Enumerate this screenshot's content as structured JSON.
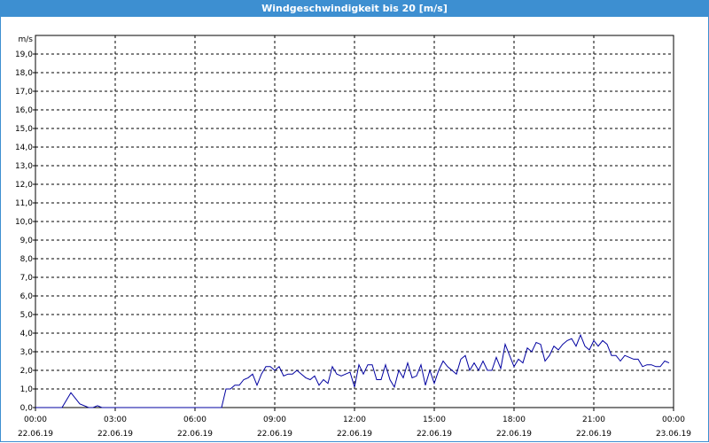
{
  "window": {
    "title": "Windgeschwindigkeit bis 20 [m/s]"
  },
  "chart_data": {
    "type": "line",
    "title": "Windgeschwindigkeit bis 20 [m/s]",
    "ylabel": "m/s",
    "ylim": [
      0,
      20
    ],
    "yticks": [
      "0,0",
      "1,0",
      "2,0",
      "3,0",
      "4,0",
      "5,0",
      "6,0",
      "7,0",
      "8,0",
      "9,0",
      "10,0",
      "11,0",
      "12,0",
      "13,0",
      "14,0",
      "15,0",
      "16,0",
      "17,0",
      "18,0",
      "19,0"
    ],
    "xlim_hours": [
      0,
      24
    ],
    "xticks": [
      {
        "time": "00:00",
        "date": "22.06.19"
      },
      {
        "time": "03:00",
        "date": "22.06.19"
      },
      {
        "time": "06:00",
        "date": "22.06.19"
      },
      {
        "time": "09:00",
        "date": "22.06.19"
      },
      {
        "time": "12:00",
        "date": "22.06.19"
      },
      {
        "time": "15:00",
        "date": "22.06.19"
      },
      {
        "time": "18:00",
        "date": "22.06.19"
      },
      {
        "time": "21:00",
        "date": "22.06.19"
      },
      {
        "time": "00:00",
        "date": "23.06.19"
      }
    ],
    "grid": true,
    "series_color": "#0000a0",
    "series": [
      {
        "x": [
          "22.06.19 00:00",
          "22.06.19 01:00",
          "22.06.19 01:20",
          "22.06.19 01:40",
          "22.06.19 02:00",
          "22.06.19 02:10",
          "22.06.19 02:20",
          "22.06.19 02:30",
          "22.06.19 02:40",
          "22.06.19 02:50",
          "22.06.19 03:00",
          "22.06.19 04:00",
          "22.06.19 05:00",
          "22.06.19 06:00",
          "22.06.19 07:00",
          "22.06.19 07:10",
          "22.06.19 07:20",
          "22.06.19 07:30",
          "22.06.19 07:40",
          "22.06.19 07:50",
          "22.06.19 08:00",
          "22.06.19 08:10",
          "22.06.19 08:20",
          "22.06.19 08:30",
          "22.06.19 08:40",
          "22.06.19 08:50",
          "22.06.19 09:00",
          "22.06.19 09:10",
          "22.06.19 09:20",
          "22.06.19 09:30",
          "22.06.19 09:40",
          "22.06.19 09:50",
          "22.06.19 10:00",
          "22.06.19 10:10",
          "22.06.19 10:20",
          "22.06.19 10:30",
          "22.06.19 10:40",
          "22.06.19 10:50",
          "22.06.19 11:00",
          "22.06.19 11:10",
          "22.06.19 11:20",
          "22.06.19 11:30",
          "22.06.19 11:40",
          "22.06.19 11:50",
          "22.06.19 12:00",
          "22.06.19 12:10",
          "22.06.19 12:20",
          "22.06.19 12:30",
          "22.06.19 12:40",
          "22.06.19 12:50",
          "22.06.19 13:00",
          "22.06.19 13:10",
          "22.06.19 13:20",
          "22.06.19 13:30",
          "22.06.19 13:40",
          "22.06.19 13:50",
          "22.06.19 14:00",
          "22.06.19 14:10",
          "22.06.19 14:20",
          "22.06.19 14:30",
          "22.06.19 14:40",
          "22.06.19 14:50",
          "22.06.19 15:00",
          "22.06.19 15:10",
          "22.06.19 15:20",
          "22.06.19 15:30",
          "22.06.19 15:40",
          "22.06.19 15:50",
          "22.06.19 16:00",
          "22.06.19 16:10",
          "22.06.19 16:20",
          "22.06.19 16:30",
          "22.06.19 16:40",
          "22.06.19 16:50",
          "22.06.19 17:00",
          "22.06.19 17:10",
          "22.06.19 17:20",
          "22.06.19 17:30",
          "22.06.19 17:40",
          "22.06.19 17:50",
          "22.06.19 18:00",
          "22.06.19 18:10",
          "22.06.19 18:20",
          "22.06.19 18:30",
          "22.06.19 18:40",
          "22.06.19 18:50",
          "22.06.19 19:00",
          "22.06.19 19:10",
          "22.06.19 19:20",
          "22.06.19 19:30",
          "22.06.19 19:40",
          "22.06.19 19:50",
          "22.06.19 20:00",
          "22.06.19 20:10",
          "22.06.19 20:20",
          "22.06.19 20:30",
          "22.06.19 20:40",
          "22.06.19 20:50",
          "22.06.19 21:00",
          "22.06.19 21:10",
          "22.06.19 21:20",
          "22.06.19 21:30",
          "22.06.19 21:40",
          "22.06.19 21:50",
          "22.06.19 22:00",
          "22.06.19 22:10",
          "22.06.19 22:20",
          "22.06.19 22:30",
          "22.06.19 22:40",
          "22.06.19 22:50",
          "22.06.19 23:00",
          "22.06.19 23:10",
          "22.06.19 23:20",
          "22.06.19 23:30",
          "22.06.19 23:40",
          "22.06.19 23:50"
        ],
        "y": [
          0.0,
          0.0,
          0.8,
          0.2,
          0.0,
          0.0,
          0.1,
          0.0,
          0.0,
          0.0,
          0.0,
          0.0,
          0.0,
          0.0,
          0.0,
          1.0,
          1.0,
          1.2,
          1.2,
          1.5,
          1.6,
          1.8,
          1.2,
          1.8,
          2.2,
          2.2,
          2.0,
          2.2,
          1.7,
          1.8,
          1.8,
          2.0,
          1.8,
          1.6,
          1.5,
          1.7,
          1.2,
          1.5,
          1.3,
          2.2,
          1.8,
          1.7,
          1.8,
          1.9,
          1.1,
          2.3,
          1.8,
          2.3,
          2.3,
          1.5,
          1.5,
          2.3,
          1.5,
          1.1,
          2.0,
          1.6,
          2.4,
          1.6,
          1.7,
          2.3,
          1.2,
          2.0,
          1.3,
          2.0,
          2.5,
          2.2,
          2.0,
          1.8,
          2.6,
          2.8,
          2.0,
          2.4,
          2.0,
          2.5,
          2.0,
          2.0,
          2.7,
          2.1,
          3.4,
          2.8,
          2.2,
          2.6,
          2.4,
          3.2,
          3.0,
          3.5,
          3.4,
          2.5,
          2.8,
          3.3,
          3.1,
          3.4,
          3.6,
          3.7,
          3.3,
          3.9,
          3.3,
          3.1,
          3.6,
          3.3,
          3.6,
          3.4,
          2.8,
          2.8,
          2.5,
          2.8,
          2.7,
          2.6,
          2.6,
          2.2,
          2.3,
          2.3,
          2.2,
          2.2,
          2.5,
          2.4
        ]
      }
    ]
  }
}
